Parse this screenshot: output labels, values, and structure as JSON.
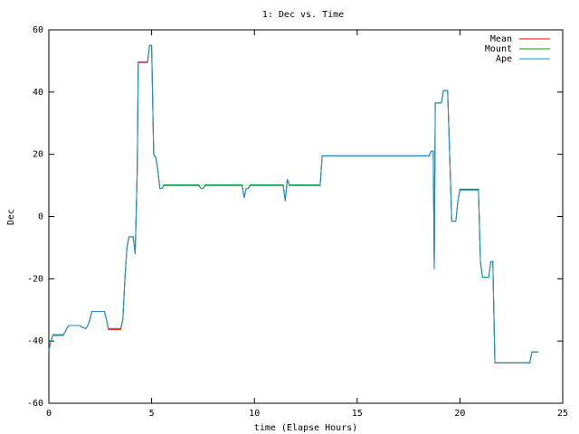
{
  "chart_data": {
    "type": "line",
    "title": "1: Dec vs. Time",
    "x_label": "time (Elapse Hours)",
    "y_label": "Dec",
    "x": [
      0,
      0.1,
      0.2,
      0.7,
      0.8,
      0.9,
      1.0,
      1.5,
      1.6,
      1.8,
      1.9,
      2.0,
      2.1,
      2.7,
      2.8,
      2.9,
      3.5,
      3.6,
      3.7,
      3.8,
      3.9,
      4.1,
      4.2,
      4.3,
      4.35,
      4.8,
      4.9,
      5.0,
      5.1,
      5.2,
      5.3,
      5.4,
      5.5,
      5.6,
      7.3,
      7.4,
      7.5,
      7.6,
      9.4,
      9.5,
      9.6,
      9.7,
      9.8,
      11.4,
      11.5,
      11.6,
      11.7,
      13.2,
      13.3,
      18.5,
      18.6,
      18.7,
      18.75,
      18.8,
      19.1,
      19.2,
      19.4,
      19.5,
      19.6,
      19.8,
      19.9,
      20.0,
      20.9,
      21.0,
      21.1,
      21.4,
      21.5,
      21.6,
      21.7,
      23.4,
      23.5,
      23.8
    ],
    "series": [
      {
        "name": "Mean",
        "color": "#ff0000",
        "values": [
          -43,
          -40,
          -38,
          -38,
          -37,
          -35.5,
          -35,
          -35,
          -35.5,
          -36,
          -35,
          -33,
          -30.5,
          -30.5,
          -33,
          -36.3,
          -36.3,
          -33,
          -20,
          -10,
          -6.5,
          -6.5,
          -12,
          15,
          49.7,
          49.7,
          55,
          55,
          20,
          19,
          15,
          9,
          9,
          10,
          10,
          9,
          9,
          10,
          10,
          6,
          9,
          9,
          10,
          10,
          5,
          12,
          10,
          10,
          19.5,
          19.5,
          21,
          21,
          -17,
          36.5,
          36.5,
          40.5,
          40.5,
          20,
          -1.5,
          -1.5,
          5,
          8.7,
          8.7,
          -15,
          -19.5,
          -19.5,
          -14.5,
          -14.5,
          -47,
          -47,
          -43.5,
          -43.5
        ]
      },
      {
        "name": "Mount",
        "color": "#00a000",
        "values": [
          -43,
          -40,
          -38.2,
          -38.2,
          -37,
          -35.5,
          -35,
          -35,
          -35.5,
          -36,
          -35,
          -33,
          -30.5,
          -30.5,
          -33,
          -36,
          -36,
          -33,
          -20,
          -10,
          -6.5,
          -6.5,
          -12,
          15,
          49.5,
          49.5,
          55,
          55,
          20,
          19,
          15,
          9,
          9,
          10.2,
          10.2,
          9,
          9,
          10.2,
          10.2,
          6,
          9,
          9,
          10.2,
          10.2,
          5,
          12,
          10.2,
          10.2,
          19.5,
          19.5,
          21,
          21,
          -17,
          36.5,
          36.5,
          40.5,
          40.5,
          20,
          -1.5,
          -1.5,
          5,
          8.8,
          8.8,
          -15,
          -19.5,
          -19.5,
          -14.5,
          -14.5,
          -47,
          -47,
          -43.5,
          -43.5
        ]
      },
      {
        "name": "Ape",
        "color": "#1a8ee0",
        "values": [
          -43,
          -40,
          -38,
          -38,
          -37,
          -35.5,
          -35,
          -35,
          -35.5,
          -36,
          -35,
          -33,
          -30.5,
          -30.5,
          -33,
          -36,
          -36,
          -33,
          -20,
          -10,
          -6.5,
          -6.5,
          -12,
          15,
          49.5,
          49.5,
          55,
          55,
          20,
          19,
          15,
          9,
          9,
          10,
          10,
          9,
          9,
          10,
          10,
          6,
          9,
          9,
          10,
          10,
          5,
          12,
          10,
          10,
          19.5,
          19.5,
          21,
          21,
          -17,
          36.5,
          36.5,
          40.5,
          40.5,
          20,
          -1.5,
          -1.5,
          5,
          8.5,
          8.5,
          -15,
          -19.5,
          -19.5,
          -14.5,
          -14.5,
          -47,
          -47,
          -43.5,
          -43.5
        ]
      }
    ],
    "xlim": [
      0,
      25
    ],
    "xticks": [
      0,
      5,
      10,
      15,
      20,
      25
    ],
    "ylim": [
      -60,
      60
    ],
    "yticks": [
      -60,
      -40,
      -20,
      0,
      20,
      40,
      60
    ],
    "legend": "top-right"
  }
}
